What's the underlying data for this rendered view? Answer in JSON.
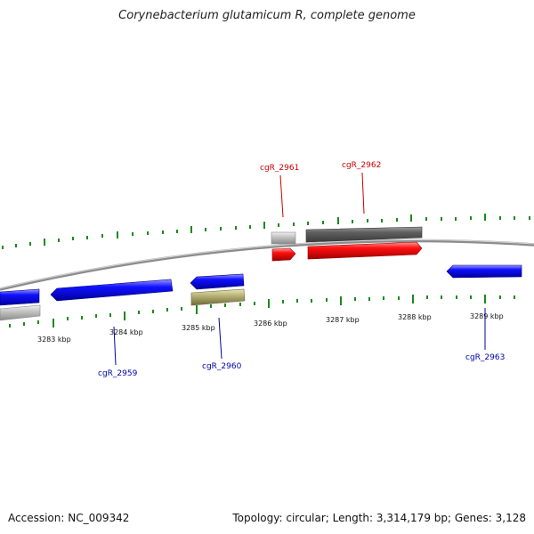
{
  "title": "Corynebacterium glutamicum R, complete genome",
  "footer": {
    "accession": "Accession: NC_009342",
    "topology": "Topology: circular; Length: 3,314,179 bp; Genes: 3,128"
  },
  "colors": {
    "forward_cds": "#ff0000",
    "reverse_cds": "#0000ff",
    "forward_grey": "#5f5f5f",
    "reverse_other": "#b3ae6a",
    "light_grey": "#c0c0c0",
    "ticks": "#1a8a1a",
    "backbone": "#909090"
  },
  "scale_labels": [
    "3283 kbp",
    "3284 kbp",
    "3285 kbp",
    "3286 kbp",
    "3287 kbp",
    "3288 kbp",
    "3289 kbp"
  ],
  "gene_labels": {
    "g2961": "cgR_2961",
    "g2962": "cgR_2962",
    "g2959": "cgR_2959",
    "g2960": "cgR_2960",
    "g2963": "cgR_2963"
  }
}
